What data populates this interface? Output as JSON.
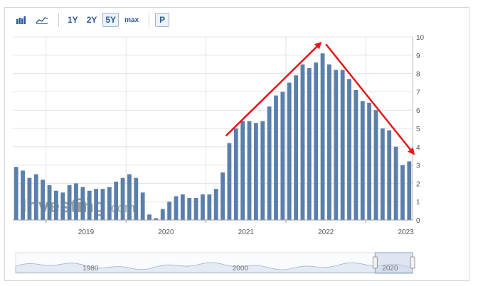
{
  "toolbar": {
    "chart_type_buttons": [
      {
        "icon": "bar-chart-icon"
      },
      {
        "icon": "line-chart-icon"
      }
    ],
    "range_buttons": [
      "1Y",
      "2Y",
      "5Y",
      "max"
    ],
    "active_range": "5Y",
    "extra_button": "P"
  },
  "watermark": {
    "brand": "Investing",
    "suffix": ".com"
  },
  "colors": {
    "bar": "#5b7fab",
    "bar_light": "#a9bdd6",
    "arrow": "#e8161b",
    "grid": "#e3e3e3",
    "navigator_fill": "#e4ebf4",
    "navigator_line": "#9db3cf"
  },
  "chart_data": {
    "type": "bar",
    "ylim": [
      0,
      10
    ],
    "yticks": [
      "0",
      "1",
      "2",
      "3",
      "4",
      "5",
      "6",
      "7",
      "8",
      "9",
      "10"
    ],
    "xticks": [
      "2019",
      "2020",
      "2021",
      "2022",
      "2023"
    ],
    "x_range": [
      "2018-08",
      "2023-08"
    ],
    "months": [
      "2018-08",
      "2018-09",
      "2018-10",
      "2018-11",
      "2018-12",
      "2019-01",
      "2019-02",
      "2019-03",
      "2019-04",
      "2019-05",
      "2019-06",
      "2019-07",
      "2019-08",
      "2019-09",
      "2019-10",
      "2019-11",
      "2019-12",
      "2020-01",
      "2020-02",
      "2020-03",
      "2020-04",
      "2020-05",
      "2020-06",
      "2020-07",
      "2020-08",
      "2020-09",
      "2020-10",
      "2020-11",
      "2020-12",
      "2021-01",
      "2021-02",
      "2021-03",
      "2021-04",
      "2021-05",
      "2021-06",
      "2021-07",
      "2021-08",
      "2021-09",
      "2021-10",
      "2021-11",
      "2021-12",
      "2022-01",
      "2022-02",
      "2022-03",
      "2022-04",
      "2022-05",
      "2022-06",
      "2022-07",
      "2022-08",
      "2022-09",
      "2022-10",
      "2022-11",
      "2022-12",
      "2023-01",
      "2023-02",
      "2023-03",
      "2023-04",
      "2023-05",
      "2023-06",
      "2023-07"
    ],
    "values": [
      2.9,
      2.7,
      2.3,
      2.5,
      2.2,
      1.9,
      1.6,
      1.5,
      1.9,
      2.0,
      1.8,
      1.6,
      1.7,
      1.7,
      1.8,
      2.1,
      2.3,
      2.5,
      2.3,
      1.5,
      0.3,
      0.1,
      0.6,
      1.0,
      1.3,
      1.4,
      1.2,
      1.2,
      1.4,
      1.4,
      1.7,
      2.6,
      4.2,
      5.0,
      5.4,
      5.4,
      5.3,
      5.4,
      6.2,
      6.8,
      7.0,
      7.5,
      7.9,
      8.5,
      8.3,
      8.6,
      9.1,
      8.5,
      8.2,
      8.2,
      7.7,
      7.1,
      6.5,
      6.4,
      6.0,
      5.0,
      4.9,
      4.0,
      3.0,
      3.2
    ],
    "annotations": [
      {
        "type": "arrow",
        "from": [
          "2021-04",
          4.6
        ],
        "to": [
          "2022-06",
          9.6
        ]
      },
      {
        "type": "arrow",
        "from": [
          "2022-07",
          9.6
        ],
        "to": [
          "2023-08",
          3.7
        ]
      }
    ],
    "navigator": {
      "labels": [
        "1980",
        "2000",
        "2020"
      ],
      "range": [
        "1970",
        "2023"
      ],
      "selected": [
        "2018",
        "2023"
      ]
    }
  }
}
